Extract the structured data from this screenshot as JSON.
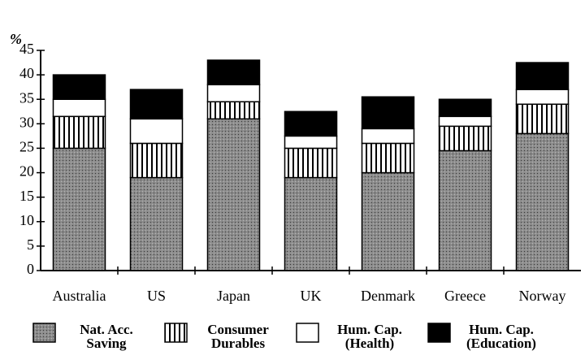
{
  "chart_data": {
    "type": "stacked-bar",
    "ylabel": "%",
    "categories": [
      "Australia",
      "US",
      "Japan",
      "UK",
      "Denmark",
      "Greece",
      "Norway"
    ],
    "series": [
      {
        "name": "Nat. Acc. Saving",
        "color": "#8c8c8c",
        "pattern": "dots",
        "values": [
          25,
          19,
          31,
          19,
          20,
          24.5,
          28
        ]
      },
      {
        "name": "Consumer Durables",
        "color": "#ffffff",
        "pattern": "vertical-stripes",
        "values": [
          6.5,
          7,
          3.5,
          6,
          6,
          5,
          6
        ]
      },
      {
        "name": "Hum. Cap. (Health)",
        "color": "#ffffff",
        "pattern": "solid",
        "values": [
          3.5,
          5,
          3.5,
          2.5,
          3,
          2,
          3
        ]
      },
      {
        "name": "Hum. Cap. (Education)",
        "color": "#000000",
        "pattern": "solid",
        "values": [
          5,
          6,
          5,
          5,
          6.5,
          3.5,
          5.5
        ]
      }
    ],
    "ylim": [
      0,
      45
    ],
    "yticks": [
      0,
      5,
      10,
      15,
      20,
      25,
      30,
      35,
      40,
      45
    ]
  }
}
